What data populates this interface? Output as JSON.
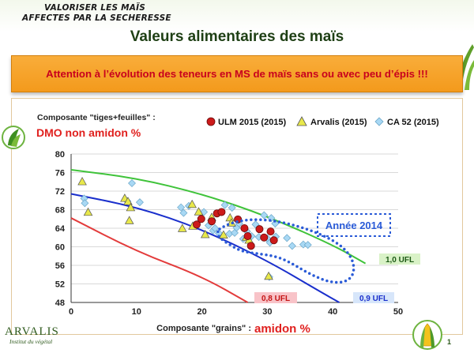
{
  "slide": {
    "handwritten_title_line1": "VALORISER LES MAÏS",
    "handwritten_title_line2": "AFFECTES PAR LA SECHERESSE",
    "title": "Valeurs alimentaires des maïs",
    "alert": "Attention à l’évolution des teneurs en MS de maïs sans ou avec peu d’épis !!!",
    "page_number": "1",
    "logo_brand": "ARVALIS",
    "logo_sub": "Institut du végétal"
  },
  "colors": {
    "ulm": "#cc1a1a",
    "arvalis": "#e8e84a",
    "ca52": "#a8d8f4",
    "line_green": "#3fc33a",
    "line_blue": "#1a2fcc",
    "line_red": "#e33b3b",
    "annee_dots": "#2a5bd7",
    "alert_text": "#c8001e"
  },
  "chart_data": {
    "type": "scatter",
    "ylabel_prefix": "Composante \"tiges+feuilles\" :",
    "ylabel_main": "DMO non amidon %",
    "xlabel_prefix": "Composante \"grains\" :",
    "xlabel_main": "amidon %",
    "xlim": [
      0,
      50
    ],
    "ylim": [
      48,
      80
    ],
    "x_ticks": [
      "0",
      "10",
      "20",
      "30",
      "40",
      "50"
    ],
    "y_ticks": [
      "48",
      "52",
      "56",
      "60",
      "64",
      "68",
      "72",
      "76",
      "80"
    ],
    "legend": [
      {
        "label": "ULM 2015 (2015)",
        "marker": "circle"
      },
      {
        "label": "Arvalis (2015)",
        "marker": "triangle"
      },
      {
        "label": "CA 52 (2015)",
        "marker": "diamond"
      }
    ],
    "reference_lines": [
      {
        "name": "1,0 UFL",
        "points": [
          [
            0,
            76.6
          ],
          [
            10,
            74.8
          ],
          [
            20,
            71.4
          ],
          [
            30,
            66.6
          ],
          [
            40,
            60.4
          ],
          [
            45,
            56.4
          ]
        ]
      },
      {
        "name": "0,9 UFL",
        "points": [
          [
            0,
            71.4
          ],
          [
            10,
            68.6
          ],
          [
            20,
            63.8
          ],
          [
            30,
            57.0
          ],
          [
            38,
            50.4
          ],
          [
            41,
            48.0
          ]
        ]
      },
      {
        "name": "0,8 UFL",
        "points": [
          [
            0,
            66.2
          ],
          [
            10,
            59.0
          ],
          [
            20,
            53.6
          ],
          [
            27,
            48.0
          ]
        ]
      }
    ],
    "annotation_box": "Année 2014",
    "series": [
      {
        "name": "ULM 2015 (2015)",
        "points": [
          [
            19.2,
            64.8
          ],
          [
            19.9,
            66.0
          ],
          [
            21.5,
            65.5
          ],
          [
            22.3,
            67.2
          ],
          [
            23.0,
            67.5
          ],
          [
            25.5,
            65.9
          ],
          [
            26.5,
            64.0
          ],
          [
            27.0,
            62.3
          ],
          [
            27.5,
            60.2
          ],
          [
            28.8,
            63.8
          ],
          [
            29.5,
            62.0
          ],
          [
            30.5,
            63.3
          ],
          [
            31.0,
            61.4
          ]
        ]
      },
      {
        "name": "Arvalis (2015)",
        "points": [
          [
            1.7,
            74.0
          ],
          [
            2.6,
            67.4
          ],
          [
            8.2,
            70.4
          ],
          [
            8.7,
            69.7
          ],
          [
            8.9,
            65.6
          ],
          [
            9.1,
            68.4
          ],
          [
            17.0,
            63.9
          ],
          [
            18.5,
            69.1
          ],
          [
            18.6,
            64.4
          ],
          [
            19.5,
            67.5
          ],
          [
            20.5,
            62.6
          ],
          [
            21.5,
            66.3
          ],
          [
            23.3,
            62.5
          ],
          [
            24.3,
            66.2
          ],
          [
            24.5,
            65.1
          ],
          [
            26.8,
            62.0
          ],
          [
            27.2,
            61.4
          ],
          [
            30.2,
            53.6
          ]
        ]
      },
      {
        "name": "CA 52 (2015)",
        "points": [
          [
            2.0,
            70.4
          ],
          [
            2.1,
            69.4
          ],
          [
            8.6,
            69.8
          ],
          [
            9.3,
            73.7
          ],
          [
            10.5,
            69.6
          ],
          [
            16.8,
            68.5
          ],
          [
            17.2,
            67.3
          ],
          [
            18.0,
            68.8
          ],
          [
            20.3,
            67.5
          ],
          [
            21.0,
            64.6
          ],
          [
            21.7,
            63.5
          ],
          [
            22.0,
            64.0
          ],
          [
            22.6,
            62.9
          ],
          [
            23.5,
            69.0
          ],
          [
            24.2,
            62.8
          ],
          [
            24.6,
            68.4
          ],
          [
            25.0,
            63.0
          ],
          [
            25.3,
            64.1
          ],
          [
            25.7,
            65.0
          ],
          [
            26.3,
            61.7
          ],
          [
            26.9,
            63.3
          ],
          [
            27.6,
            62.3
          ],
          [
            28.2,
            64.8
          ],
          [
            28.7,
            62.1
          ],
          [
            29.5,
            66.8
          ],
          [
            30.0,
            61.8
          ],
          [
            30.4,
            60.9
          ],
          [
            30.6,
            66.2
          ],
          [
            31.2,
            65.0
          ],
          [
            31.3,
            62.2
          ],
          [
            33.0,
            61.9
          ],
          [
            33.8,
            60.2
          ],
          [
            35.5,
            60.5
          ],
          [
            36.2,
            60.4
          ],
          [
            30.3,
            53.5
          ]
        ]
      }
    ]
  }
}
